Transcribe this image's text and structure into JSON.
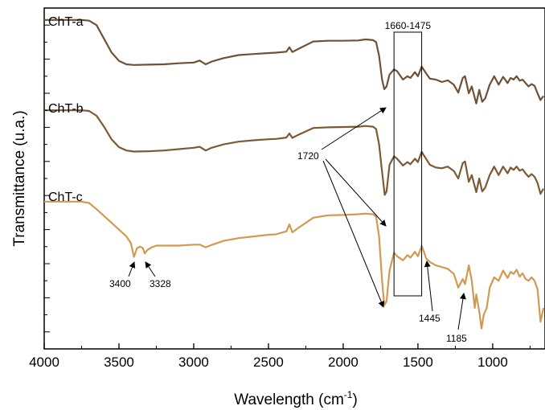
{
  "chart_data": {
    "type": "line",
    "xlabel": "Wavelength (cm-1)",
    "xlabel_base": "Wavelength (cm",
    "xlabel_sup": "-1",
    "xlabel_close": ")",
    "ylabel": "Transmittance (u.a.)",
    "xlim": [
      4000,
      650
    ],
    "x_reversed": true,
    "x_ticks": [
      4000,
      3500,
      3000,
      2500,
      2000,
      1500,
      1000
    ],
    "x_tick_labels": [
      "4000",
      "3500",
      "3000",
      "2500",
      "2000",
      "1500",
      "1000"
    ],
    "y_tick_labels_shown": false,
    "ylim": [
      0,
      1
    ],
    "legend": "none",
    "grid": false,
    "series": [
      {
        "name": "ChT-a",
        "color": "#6f5236",
        "points": [
          [
            4000,
            0.965
          ],
          [
            3750,
            0.965
          ],
          [
            3700,
            0.963
          ],
          [
            3650,
            0.95
          ],
          [
            3600,
            0.91
          ],
          [
            3550,
            0.87
          ],
          [
            3500,
            0.845
          ],
          [
            3450,
            0.835
          ],
          [
            3400,
            0.833
          ],
          [
            3300,
            0.834
          ],
          [
            3200,
            0.835
          ],
          [
            3100,
            0.838
          ],
          [
            3000,
            0.84
          ],
          [
            2960,
            0.846
          ],
          [
            2920,
            0.835
          ],
          [
            2880,
            0.843
          ],
          [
            2800,
            0.853
          ],
          [
            2700,
            0.862
          ],
          [
            2600,
            0.865
          ],
          [
            2500,
            0.868
          ],
          [
            2450,
            0.869
          ],
          [
            2380,
            0.872
          ],
          [
            2360,
            0.885
          ],
          [
            2340,
            0.871
          ],
          [
            2300,
            0.88
          ],
          [
            2200,
            0.902
          ],
          [
            2100,
            0.904
          ],
          [
            2000,
            0.904
          ],
          [
            1900,
            0.905
          ],
          [
            1850,
            0.908
          ],
          [
            1800,
            0.906
          ],
          [
            1780,
            0.9
          ],
          [
            1760,
            0.86
          ],
          [
            1740,
            0.79
          ],
          [
            1725,
            0.762
          ],
          [
            1710,
            0.77
          ],
          [
            1690,
            0.805
          ],
          [
            1660,
            0.82
          ],
          [
            1640,
            0.815
          ],
          [
            1600,
            0.79
          ],
          [
            1570,
            0.8
          ],
          [
            1550,
            0.795
          ],
          [
            1520,
            0.812
          ],
          [
            1500,
            0.8
          ],
          [
            1475,
            0.828
          ],
          [
            1445,
            0.808
          ],
          [
            1420,
            0.793
          ],
          [
            1380,
            0.79
          ],
          [
            1340,
            0.783
          ],
          [
            1300,
            0.788
          ],
          [
            1260,
            0.775
          ],
          [
            1230,
            0.752
          ],
          [
            1200,
            0.795
          ],
          [
            1185,
            0.8
          ],
          [
            1160,
            0.75
          ],
          [
            1140,
            0.77
          ],
          [
            1110,
            0.72
          ],
          [
            1090,
            0.76
          ],
          [
            1070,
            0.725
          ],
          [
            1050,
            0.735
          ],
          [
            1020,
            0.775
          ],
          [
            990,
            0.8
          ],
          [
            960,
            0.775
          ],
          [
            930,
            0.798
          ],
          [
            900,
            0.78
          ],
          [
            880,
            0.795
          ],
          [
            860,
            0.79
          ],
          [
            840,
            0.8
          ],
          [
            820,
            0.787
          ],
          [
            800,
            0.79
          ],
          [
            780,
            0.78
          ],
          [
            760,
            0.77
          ],
          [
            740,
            0.777
          ],
          [
            720,
            0.772
          ],
          [
            700,
            0.75
          ],
          [
            680,
            0.73
          ],
          [
            660,
            0.742
          ]
        ]
      },
      {
        "name": "ChT-b",
        "color": "#7c5a35",
        "points": [
          [
            4000,
            0.7
          ],
          [
            3750,
            0.7
          ],
          [
            3700,
            0.698
          ],
          [
            3650,
            0.684
          ],
          [
            3600,
            0.652
          ],
          [
            3550,
            0.615
          ],
          [
            3500,
            0.592
          ],
          [
            3450,
            0.582
          ],
          [
            3400,
            0.579
          ],
          [
            3300,
            0.58
          ],
          [
            3200,
            0.582
          ],
          [
            3100,
            0.586
          ],
          [
            3000,
            0.59
          ],
          [
            2960,
            0.593
          ],
          [
            2920,
            0.582
          ],
          [
            2880,
            0.59
          ],
          [
            2800,
            0.6
          ],
          [
            2700,
            0.608
          ],
          [
            2600,
            0.612
          ],
          [
            2500,
            0.615
          ],
          [
            2450,
            0.616
          ],
          [
            2380,
            0.62
          ],
          [
            2360,
            0.632
          ],
          [
            2340,
            0.619
          ],
          [
            2300,
            0.628
          ],
          [
            2200,
            0.648
          ],
          [
            2100,
            0.65
          ],
          [
            2000,
            0.651
          ],
          [
            1900,
            0.652
          ],
          [
            1850,
            0.654
          ],
          [
            1800,
            0.652
          ],
          [
            1780,
            0.645
          ],
          [
            1760,
            0.6
          ],
          [
            1740,
            0.52
          ],
          [
            1722,
            0.452
          ],
          [
            1710,
            0.462
          ],
          [
            1690,
            0.54
          ],
          [
            1660,
            0.565
          ],
          [
            1640,
            0.558
          ],
          [
            1600,
            0.538
          ],
          [
            1570,
            0.548
          ],
          [
            1550,
            0.542
          ],
          [
            1520,
            0.558
          ],
          [
            1500,
            0.548
          ],
          [
            1475,
            0.578
          ],
          [
            1445,
            0.557
          ],
          [
            1420,
            0.54
          ],
          [
            1380,
            0.532
          ],
          [
            1340,
            0.53
          ],
          [
            1300,
            0.535
          ],
          [
            1260,
            0.522
          ],
          [
            1230,
            0.5
          ],
          [
            1200,
            0.545
          ],
          [
            1185,
            0.55
          ],
          [
            1160,
            0.49
          ],
          [
            1140,
            0.51
          ],
          [
            1110,
            0.46
          ],
          [
            1090,
            0.5
          ],
          [
            1070,
            0.462
          ],
          [
            1050,
            0.473
          ],
          [
            1020,
            0.51
          ],
          [
            990,
            0.535
          ],
          [
            960,
            0.51
          ],
          [
            930,
            0.535
          ],
          [
            900,
            0.515
          ],
          [
            880,
            0.532
          ],
          [
            860,
            0.525
          ],
          [
            840,
            0.535
          ],
          [
            820,
            0.523
          ],
          [
            800,
            0.527
          ],
          [
            780,
            0.515
          ],
          [
            760,
            0.505
          ],
          [
            740,
            0.513
          ],
          [
            720,
            0.505
          ],
          [
            700,
            0.487
          ],
          [
            680,
            0.455
          ],
          [
            660,
            0.47
          ]
        ]
      },
      {
        "name": "ChT-c",
        "color": "#d29a51",
        "points": [
          [
            4000,
            0.432
          ],
          [
            3750,
            0.432
          ],
          [
            3700,
            0.428
          ],
          [
            3650,
            0.41
          ],
          [
            3600,
            0.39
          ],
          [
            3550,
            0.37
          ],
          [
            3500,
            0.35
          ],
          [
            3450,
            0.33
          ],
          [
            3420,
            0.31
          ],
          [
            3400,
            0.27
          ],
          [
            3380,
            0.295
          ],
          [
            3360,
            0.3
          ],
          [
            3340,
            0.296
          ],
          [
            3328,
            0.28
          ],
          [
            3310,
            0.29
          ],
          [
            3280,
            0.298
          ],
          [
            3250,
            0.303
          ],
          [
            3200,
            0.303
          ],
          [
            3100,
            0.303
          ],
          [
            3000,
            0.306
          ],
          [
            2960,
            0.306
          ],
          [
            2920,
            0.298
          ],
          [
            2880,
            0.305
          ],
          [
            2800,
            0.317
          ],
          [
            2700,
            0.325
          ],
          [
            2600,
            0.33
          ],
          [
            2500,
            0.335
          ],
          [
            2450,
            0.336
          ],
          [
            2380,
            0.345
          ],
          [
            2360,
            0.365
          ],
          [
            2340,
            0.342
          ],
          [
            2300,
            0.355
          ],
          [
            2200,
            0.385
          ],
          [
            2100,
            0.392
          ],
          [
            2000,
            0.393
          ],
          [
            1900,
            0.395
          ],
          [
            1850,
            0.397
          ],
          [
            1800,
            0.395
          ],
          [
            1780,
            0.388
          ],
          [
            1760,
            0.33
          ],
          [
            1740,
            0.2
          ],
          [
            1725,
            0.128
          ],
          [
            1710,
            0.14
          ],
          [
            1690,
            0.23
          ],
          [
            1660,
            0.282
          ],
          [
            1640,
            0.272
          ],
          [
            1600,
            0.26
          ],
          [
            1570,
            0.275
          ],
          [
            1550,
            0.268
          ],
          [
            1520,
            0.285
          ],
          [
            1500,
            0.272
          ],
          [
            1475,
            0.302
          ],
          [
            1460,
            0.285
          ],
          [
            1445,
            0.265
          ],
          [
            1420,
            0.255
          ],
          [
            1380,
            0.245
          ],
          [
            1340,
            0.24
          ],
          [
            1300,
            0.235
          ],
          [
            1260,
            0.22
          ],
          [
            1230,
            0.18
          ],
          [
            1200,
            0.205
          ],
          [
            1185,
            0.19
          ],
          [
            1160,
            0.245
          ],
          [
            1140,
            0.2
          ],
          [
            1120,
            0.12
          ],
          [
            1110,
            0.16
          ],
          [
            1090,
            0.11
          ],
          [
            1075,
            0.06
          ],
          [
            1060,
            0.1
          ],
          [
            1040,
            0.12
          ],
          [
            1020,
            0.18
          ],
          [
            990,
            0.21
          ],
          [
            960,
            0.2
          ],
          [
            930,
            0.23
          ],
          [
            900,
            0.208
          ],
          [
            880,
            0.226
          ],
          [
            860,
            0.22
          ],
          [
            840,
            0.232
          ],
          [
            820,
            0.212
          ],
          [
            800,
            0.222
          ],
          [
            780,
            0.205
          ],
          [
            760,
            0.2
          ],
          [
            740,
            0.21
          ],
          [
            720,
            0.2
          ],
          [
            700,
            0.175
          ],
          [
            680,
            0.08
          ],
          [
            660,
            0.12
          ]
        ]
      }
    ],
    "series_labels": [
      "ChT-a",
      "ChT-b",
      "ChT-c"
    ],
    "box_label": "1660-1475",
    "box_x_range": [
      1660,
      1475
    ],
    "annotations": [
      {
        "text": "1720",
        "x": 1720
      },
      {
        "text": "3400",
        "x": 3400
      },
      {
        "text": "3328",
        "x": 3328
      },
      {
        "text": "1445",
        "x": 1445
      },
      {
        "text": "1185",
        "x": 1185
      }
    ]
  }
}
